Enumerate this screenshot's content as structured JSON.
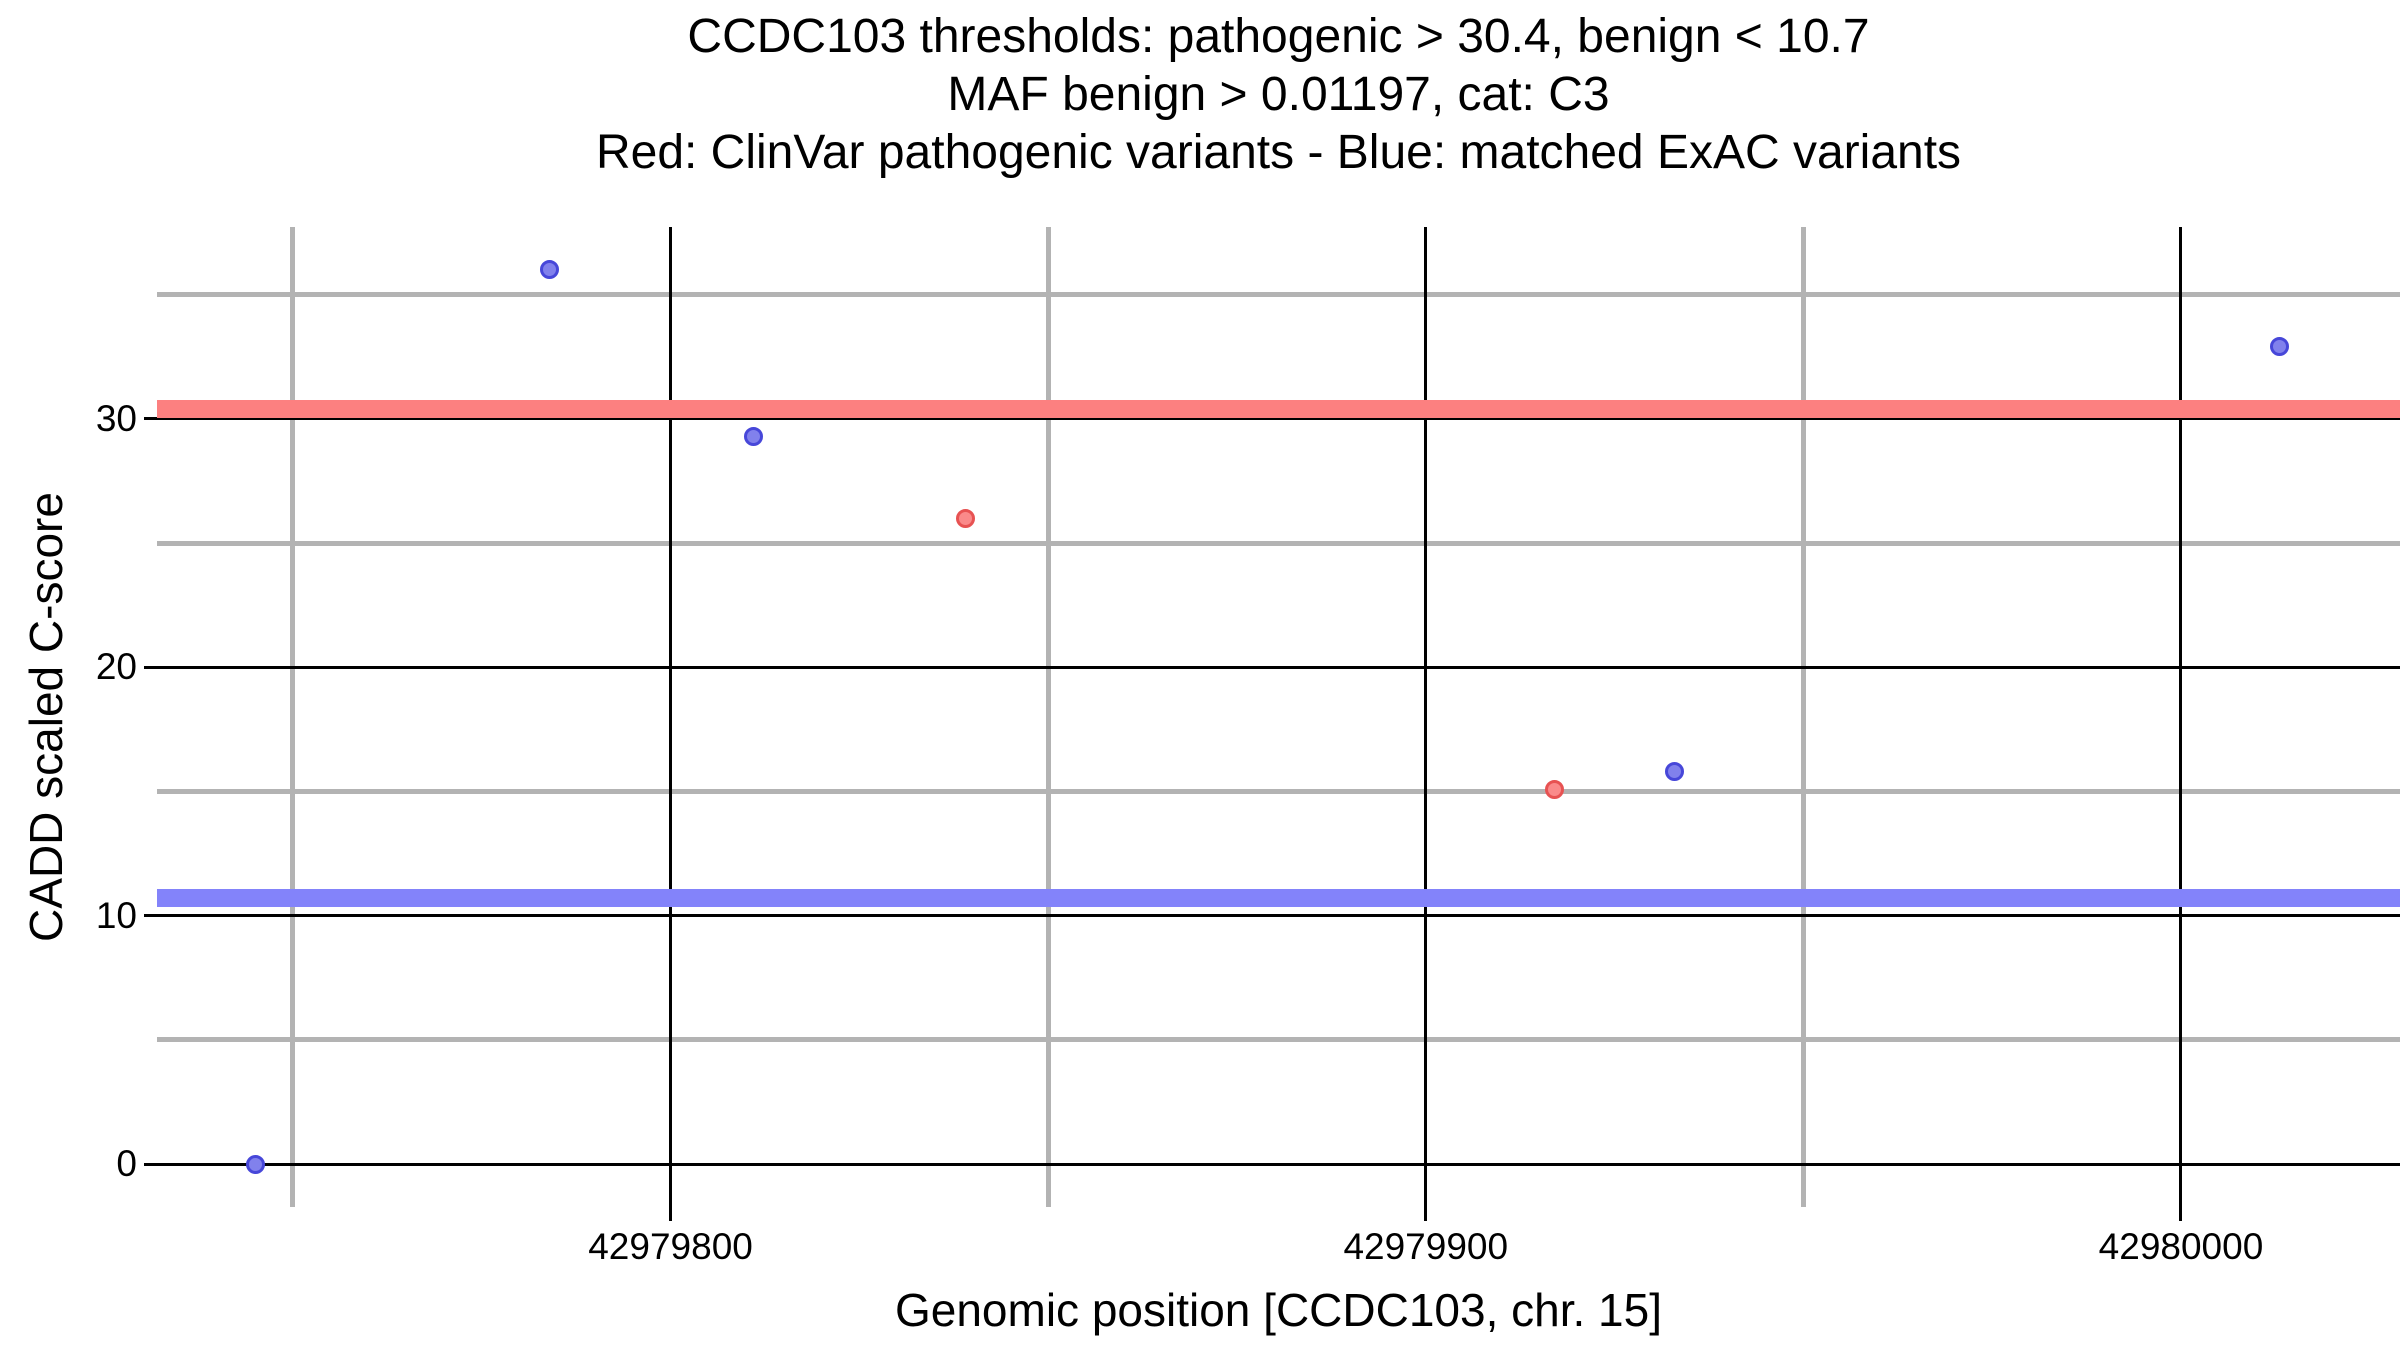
{
  "chart_data": {
    "type": "scatter",
    "title_lines": [
      "CCDC103 thresholds: pathogenic > 30.4, benign < 10.7",
      "MAF benign > 0.01197, cat: C3",
      "Red: ClinVar pathogenic variants - Blue: matched ExAC variants"
    ],
    "xlabel": "Genomic position [CCDC103, chr. 15]",
    "ylabel": "CADD scaled C-score",
    "xlim": [
      42979732,
      42980029
    ],
    "ylim": [
      -1.73,
      37.73
    ],
    "x_ticks": [
      42979800,
      42979900,
      42980000
    ],
    "x_tick_labels": [
      "42979800",
      "42979900",
      "42980000"
    ],
    "x_minor_ticks": [
      42979750,
      42979850,
      42979950
    ],
    "y_ticks": [
      0,
      10,
      20,
      30
    ],
    "y_tick_labels": [
      "0",
      "10",
      "20",
      "30"
    ],
    "y_minor_ticks": [
      5,
      15,
      25,
      35
    ],
    "legend_position": "none",
    "grid": {
      "major_color": "#000000",
      "minor_color": "#b3b3b3"
    },
    "series": [
      {
        "name": "ClinVar pathogenic variants",
        "color_key": "red",
        "points": [
          {
            "x": 42979839,
            "y": 26.0
          },
          {
            "x": 42979917,
            "y": 15.1
          }
        ]
      },
      {
        "name": "matched ExAC variants",
        "color_key": "blue",
        "points": [
          {
            "x": 42979745,
            "y": 0.0
          },
          {
            "x": 42979784,
            "y": 36.0
          },
          {
            "x": 42979811,
            "y": 29.3
          },
          {
            "x": 42979933,
            "y": 15.8
          },
          {
            "x": 42980013,
            "y": 32.9
          }
        ]
      }
    ],
    "thresholds": [
      {
        "name": "pathogenic",
        "value": 30.4,
        "color_key": "red"
      },
      {
        "name": "benign",
        "value": 10.7,
        "color_key": "blue"
      }
    ],
    "colors": {
      "red_fill": "#fa8a8a",
      "red_stroke": "#e75252",
      "blue_fill": "#8181ec",
      "blue_stroke": "#4747d9",
      "red_band": "#fc8080",
      "blue_band": "#8383fa"
    }
  }
}
